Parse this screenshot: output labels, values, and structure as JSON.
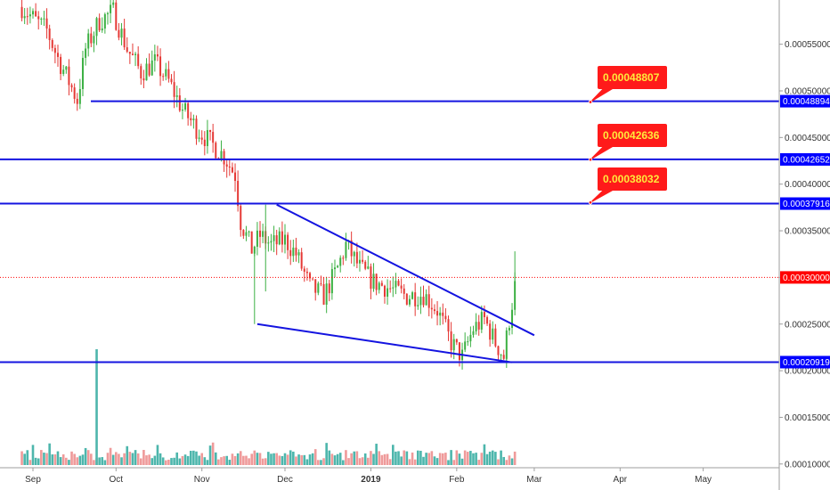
{
  "chart_data": {
    "type": "candlestick",
    "y_axis": {
      "ticks": [
        "0.00055000",
        "0.00050000",
        "0.00045000",
        "0.00040000",
        "0.00035000",
        "0.00030000",
        "0.00025000",
        "0.00020000",
        "0.00015000",
        "0.00010000"
      ]
    },
    "x_axis": {
      "ticks": [
        {
          "label": "Sep",
          "bold": false
        },
        {
          "label": "Oct",
          "bold": false
        },
        {
          "label": "Nov",
          "bold": false
        },
        {
          "label": "Dec",
          "bold": false
        },
        {
          "label": "2019",
          "bold": true
        },
        {
          "label": "Feb",
          "bold": false
        },
        {
          "label": "Mar",
          "bold": false
        },
        {
          "label": "Apr",
          "bold": false
        },
        {
          "label": "May",
          "bold": false
        }
      ]
    },
    "horizontal_levels": [
      {
        "value": 0.00048894,
        "label": "0.00048894",
        "color": "#1414e0"
      },
      {
        "value": 0.00042652,
        "label": "0.00042652",
        "color": "#1414e0"
      },
      {
        "value": 0.00037916,
        "label": "0.00037916",
        "color": "#1414e0"
      },
      {
        "value": 0.00020919,
        "label": "0.00020919",
        "color": "#1414e0"
      }
    ],
    "current_price": {
      "value": 0.0003,
      "label": "0.00030000",
      "color": "#ff0000"
    },
    "callouts": [
      {
        "text": "0.00048807",
        "target": 0.00048807
      },
      {
        "text": "0.00042636",
        "target": 0.00042636
      },
      {
        "text": "0.00038032",
        "target": 0.00038032
      }
    ],
    "trendlines": [
      {
        "name": "upper",
        "points": [
          [
            "2018-11-28",
            0.000378
          ],
          [
            "2019-03-01",
            0.000238
          ]
        ]
      },
      {
        "name": "lower",
        "points": [
          [
            "2018-11-21",
            0.00025
          ],
          [
            "2019-02-21",
            0.000209
          ]
        ]
      }
    ],
    "colors": {
      "up": "#26a69a",
      "down": "#ef5350",
      "up_wick": "#3cb043",
      "down_wick": "#e53935"
    },
    "series": [
      {
        "name": "price",
        "description": "daily candles, Sep 2018 - Feb 2019",
        "anchors": [
          [
            "2018-08-28",
            0.00059
          ],
          [
            "2018-09-02",
            0.000575
          ],
          [
            "2018-09-06",
            0.000565
          ],
          [
            "2018-09-10",
            0.000535
          ],
          [
            "2018-09-14",
            0.00051
          ],
          [
            "2018-09-17",
            0.00049
          ],
          [
            "2018-09-20",
            0.000545
          ],
          [
            "2018-09-25",
            0.000575
          ],
          [
            "2018-09-30",
            0.000585
          ],
          [
            "2018-10-05",
            0.000545
          ],
          [
            "2018-10-10",
            0.00052
          ],
          [
            "2018-10-15",
            0.00053
          ],
          [
            "2018-10-20",
            0.00051
          ],
          [
            "2018-10-25",
            0.00048
          ],
          [
            "2018-10-30",
            0.00046
          ],
          [
            "2018-11-04",
            0.000445
          ],
          [
            "2018-11-09",
            0.00043
          ],
          [
            "2018-11-13",
            0.00041
          ],
          [
            "2018-11-15",
            0.00036
          ],
          [
            "2018-11-19",
            0.00033
          ],
          [
            "2018-11-22",
            0.000345
          ],
          [
            "2018-11-26",
            0.000335
          ],
          [
            "2018-12-01",
            0.00034
          ],
          [
            "2018-12-05",
            0.000325
          ],
          [
            "2018-12-10",
            0.00029
          ],
          [
            "2018-12-15",
            0.00028
          ],
          [
            "2018-12-20",
            0.00031
          ],
          [
            "2018-12-23",
            0.000335
          ],
          [
            "2018-12-28",
            0.00031
          ],
          [
            "2019-01-02",
            0.000295
          ],
          [
            "2019-01-08",
            0.000288
          ],
          [
            "2019-01-14",
            0.00028
          ],
          [
            "2019-01-20",
            0.000282
          ],
          [
            "2019-01-25",
            0.000265
          ],
          [
            "2019-01-30",
            0.00023
          ],
          [
            "2019-02-03",
            0.000215
          ],
          [
            "2019-02-07",
            0.000245
          ],
          [
            "2019-02-11",
            0.000255
          ],
          [
            "2019-02-15",
            0.00023
          ],
          [
            "2019-02-18",
            0.000215
          ],
          [
            "2019-02-20",
            0.000255
          ],
          [
            "2019-02-22",
            0.00029
          ],
          [
            "2019-02-23",
            0.000305
          ]
        ]
      },
      {
        "name": "volume",
        "description": "daily volume bars, relative scale",
        "max_spike": {
          "date": "2018-09-24",
          "relative": 1.0
        },
        "typical_relative": 0.25
      }
    ]
  }
}
